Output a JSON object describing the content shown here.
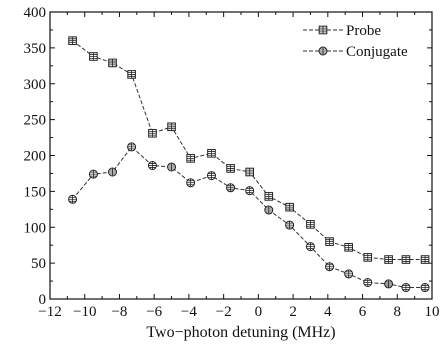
{
  "chart_data": {
    "type": "line",
    "xlabel": "Two−photon detuning (MHz)",
    "ylabel": "",
    "xlim": [
      -12,
      10
    ],
    "ylim": [
      0,
      400
    ],
    "x_ticks": [
      -12,
      -10,
      -8,
      -6,
      -4,
      -2,
      0,
      2,
      4,
      6,
      8,
      10
    ],
    "x_tick_labels": [
      "−12",
      "−10",
      "−8",
      "−6",
      "−4",
      "−2",
      "0",
      "2",
      "4",
      "6",
      "8",
      "10"
    ],
    "y_ticks": [
      0,
      50,
      100,
      150,
      200,
      250,
      300,
      350,
      400
    ],
    "y_tick_labels": [
      "0",
      "50",
      "100",
      "150",
      "200",
      "250",
      "300",
      "350",
      "400"
    ],
    "grid": false,
    "legend_position": "top-right",
    "series": [
      {
        "name": "Probe",
        "marker": "square",
        "color": "#333333",
        "x": [
          -10.7,
          -9.5,
          -8.4,
          -7.3,
          -6.1,
          -5.0,
          -3.9,
          -2.7,
          -1.6,
          -0.5,
          0.6,
          1.8,
          3.0,
          4.1,
          5.2,
          6.3,
          7.5,
          8.5,
          9.6
        ],
        "y": [
          360,
          338,
          329,
          313,
          231,
          240,
          196,
          203,
          182,
          177,
          143,
          128,
          104,
          80,
          72,
          58,
          55,
          55,
          55
        ]
      },
      {
        "name": "Conjugate",
        "marker": "circle",
        "color": "#333333",
        "x": [
          -10.7,
          -9.5,
          -8.4,
          -7.3,
          -6.1,
          -5.0,
          -3.9,
          -2.7,
          -1.6,
          -0.5,
          0.6,
          1.8,
          3.0,
          4.1,
          5.2,
          6.3,
          7.5,
          8.5,
          9.6
        ],
        "y": [
          139,
          174,
          177,
          212,
          186,
          184,
          162,
          172,
          155,
          151,
          124,
          103,
          73,
          45,
          35,
          23,
          21,
          16,
          16
        ]
      }
    ]
  }
}
